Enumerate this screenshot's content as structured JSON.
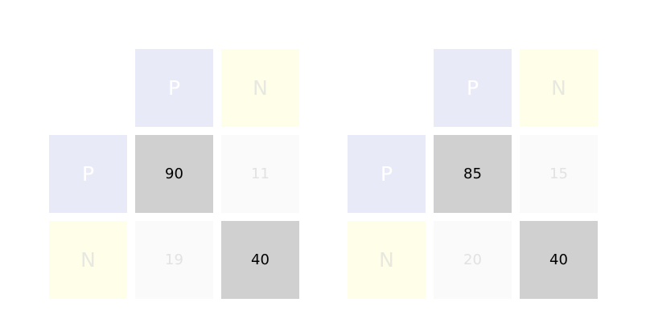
{
  "matrices": [
    {
      "col_headers": [
        "P",
        "N"
      ],
      "row_headers": [
        "P",
        "N"
      ],
      "cells": [
        [
          "90",
          "11"
        ],
        [
          "19",
          "40"
        ]
      ]
    },
    {
      "col_headers": [
        "P",
        "N"
      ],
      "row_headers": [
        "P",
        "N"
      ],
      "cells": [
        [
          "85",
          "15"
        ],
        [
          "20",
          "40"
        ]
      ]
    }
  ],
  "colors": {
    "positive_header": "#e9eaf8",
    "negative_header": "#fefee9",
    "diagonal_cell": "#d0d0d0",
    "off_diagonal_cell": "#fafafa"
  }
}
